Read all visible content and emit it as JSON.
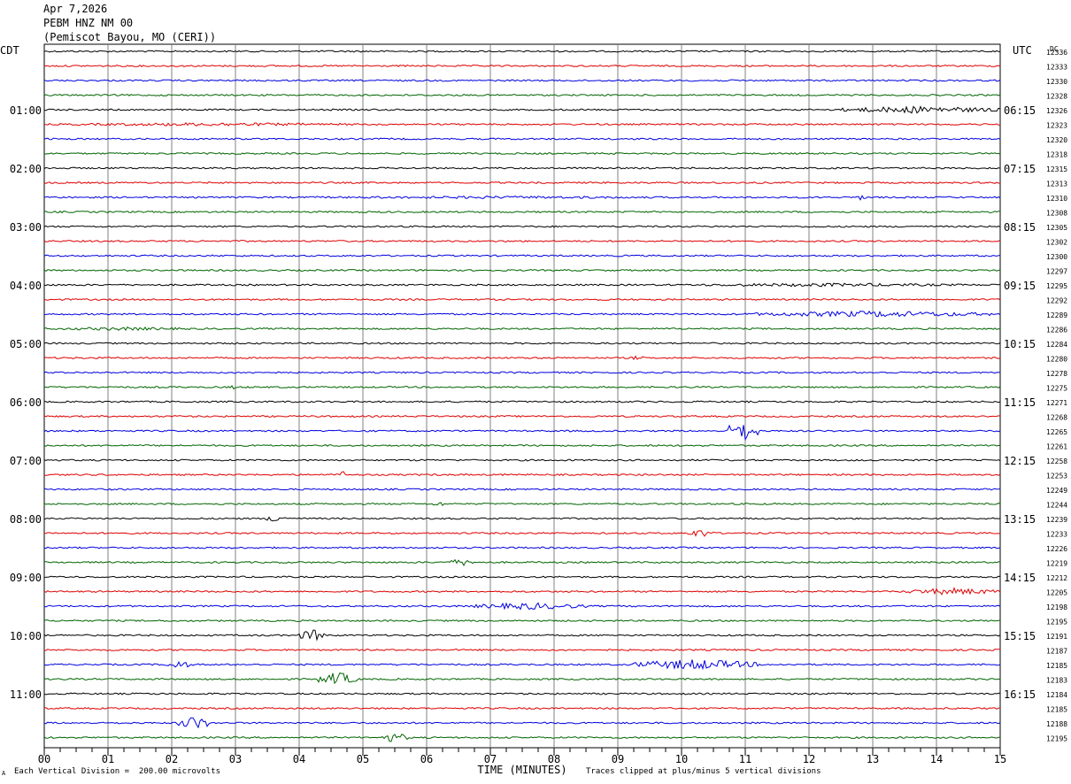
{
  "header": {
    "date": "Apr 7,2026",
    "station": "PEBM HNZ NM 00",
    "location": "(Pemiscot Bayou, MO (CERI))"
  },
  "left_axis_label": "CDT",
  "right_axis_label": "UTC",
  "dc_label": "DC",
  "footer": {
    "scale_note": "Each Vertical Division =  200.00 microvolts",
    "clip_note": "Traces clipped at plus/minus 5 vertical divisions",
    "corner_mark": "A"
  },
  "colors": {
    "trace_cycle": [
      "#000000",
      "#e00000",
      "#0000e0",
      "#006400"
    ],
    "grid": "#808080",
    "frame": "#000000"
  },
  "chart_data": {
    "type": "line",
    "title": "",
    "xlabel": "TIME (MINUTES)",
    "ylabel": "",
    "xlim": [
      0,
      15
    ],
    "x_ticks": [
      "00",
      "01",
      "02",
      "03",
      "04",
      "05",
      "06",
      "07",
      "08",
      "09",
      "10",
      "11",
      "12",
      "13",
      "14",
      "15"
    ],
    "traces_per_hour": 4,
    "minutes_per_trace": 15,
    "left_hour_labels": [
      "01:00",
      "02:00",
      "03:00",
      "04:00",
      "05:00",
      "06:00",
      "07:00",
      "08:00",
      "09:00",
      "10:00",
      "11:00"
    ],
    "right_hour_labels": [
      "06:15",
      "07:15",
      "08:15",
      "09:15",
      "10:15",
      "11:15",
      "12:15",
      "13:15",
      "14:15",
      "15:15",
      "16:15"
    ],
    "hour_label_first_trace": 4,
    "dc_values": [
      12336,
      12333,
      12330,
      12328,
      12326,
      12323,
      12320,
      12318,
      12315,
      12313,
      12310,
      12308,
      12305,
      12302,
      12300,
      12297,
      12295,
      12292,
      12289,
      12286,
      12284,
      12280,
      12278,
      12275,
      12271,
      12268,
      12265,
      12261,
      12258,
      12253,
      12249,
      12244,
      12239,
      12233,
      12226,
      12219,
      12212,
      12205,
      12198,
      12195,
      12191,
      12187,
      12185,
      12183,
      12184,
      12185,
      12188,
      12195
    ],
    "events": [
      {
        "trace": 4,
        "start": 12.4,
        "end": 15.0,
        "amp": 4
      },
      {
        "trace": 5,
        "start": 0.0,
        "end": 5.2,
        "amp": 2
      },
      {
        "trace": 10,
        "start": 12.7,
        "end": 12.9,
        "amp": 3
      },
      {
        "trace": 10,
        "start": 2.2,
        "end": 11.8,
        "amp": 1.5
      },
      {
        "trace": 16,
        "start": 9.5,
        "end": 15.0,
        "amp": 2
      },
      {
        "trace": 18,
        "start": 11.0,
        "end": 15.0,
        "amp": 3.5
      },
      {
        "trace": 19,
        "start": 0.0,
        "end": 2.5,
        "amp": 2
      },
      {
        "trace": 21,
        "start": 9.2,
        "end": 9.4,
        "amp": 3
      },
      {
        "trace": 23,
        "start": 2.9,
        "end": 3.0,
        "amp": 3
      },
      {
        "trace": 26,
        "start": 10.7,
        "end": 11.2,
        "amp": 12
      },
      {
        "trace": 29,
        "start": 4.65,
        "end": 4.7,
        "amp": 8
      },
      {
        "trace": 31,
        "start": 6.1,
        "end": 6.3,
        "amp": 3
      },
      {
        "trace": 32,
        "start": 3.5,
        "end": 3.8,
        "amp": 5
      },
      {
        "trace": 33,
        "start": 10.1,
        "end": 10.5,
        "amp": 5
      },
      {
        "trace": 35,
        "start": 6.3,
        "end": 6.8,
        "amp": 4
      },
      {
        "trace": 37,
        "start": 13.5,
        "end": 15.0,
        "amp": 4
      },
      {
        "trace": 38,
        "start": 6.7,
        "end": 8.5,
        "amp": 4
      },
      {
        "trace": 40,
        "start": 4.0,
        "end": 4.4,
        "amp": 7
      },
      {
        "trace": 42,
        "start": 9.2,
        "end": 11.2,
        "amp": 6
      },
      {
        "trace": 42,
        "start": 1.9,
        "end": 2.3,
        "amp": 5
      },
      {
        "trace": 43,
        "start": 4.3,
        "end": 4.9,
        "amp": 8
      },
      {
        "trace": 46,
        "start": 2.1,
        "end": 2.6,
        "amp": 8
      },
      {
        "trace": 47,
        "start": 5.3,
        "end": 5.7,
        "amp": 6
      }
    ]
  }
}
